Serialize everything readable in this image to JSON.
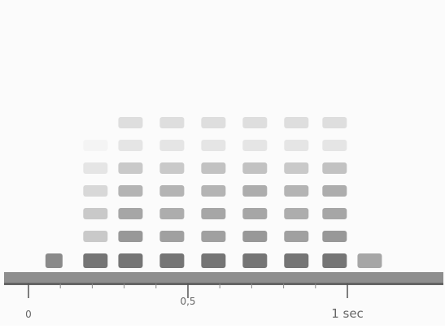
{
  "chart_data": {
    "type": "heatmap",
    "title": "",
    "xlabel": "",
    "ylabel": "",
    "x_unit": "sec",
    "xlim": [
      0,
      1.05
    ],
    "x_ticks": [
      {
        "value": 0,
        "label": "0"
      },
      {
        "value": 0.5,
        "label": "0,5"
      },
      {
        "value": 1,
        "label": "1 sec"
      }
    ],
    "columns_x": [
      0.08,
      0.21,
      0.32,
      0.45,
      0.58,
      0.71,
      0.84,
      0.96,
      1.07
    ],
    "rows": [
      {
        "level": 1,
        "cells": [
          0.8,
          0.95,
          0.95,
          0.95,
          0.95,
          0.95,
          0.95,
          0.95,
          0.6
        ]
      },
      {
        "level": 2,
        "cells": [
          0,
          0.35,
          0.7,
          0.65,
          0.65,
          0.7,
          0.65,
          0.7,
          0
        ]
      },
      {
        "level": 3,
        "cells": [
          0,
          0.35,
          0.6,
          0.55,
          0.6,
          0.6,
          0.55,
          0.6,
          0
        ]
      },
      {
        "level": 4,
        "cells": [
          0,
          0.25,
          0.5,
          0.5,
          0.5,
          0.55,
          0.5,
          0.55,
          0
        ]
      },
      {
        "level": 5,
        "cells": [
          0,
          0.15,
          0.35,
          0.35,
          0.4,
          0.4,
          0.35,
          0.4,
          0
        ]
      },
      {
        "level": 6,
        "cells": [
          0,
          0.05,
          0.15,
          0.15,
          0.15,
          0.15,
          0.15,
          0.15,
          0
        ]
      },
      {
        "level": 7,
        "cells": [
          0,
          0,
          0.2,
          0.2,
          0.2,
          0.2,
          0.2,
          0.2,
          0
        ]
      }
    ],
    "colors": {
      "mark": "#6e6e6e",
      "baseline": "#7a7a7a",
      "ticks": "#555555",
      "background": "#fbfbfb"
    },
    "grid": false,
    "legend": "none"
  }
}
